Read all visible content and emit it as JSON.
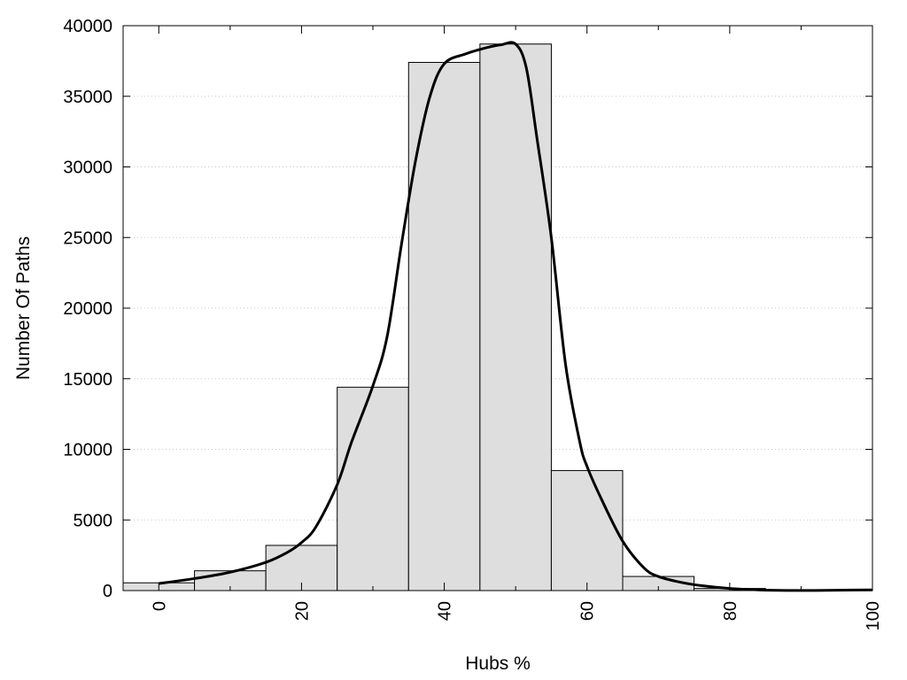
{
  "chart_data": {
    "type": "bar",
    "title": "",
    "xlabel": "Hubs %",
    "ylabel": "Number Of Paths",
    "xlim": [
      -5,
      100
    ],
    "ylim": [
      0,
      40000
    ],
    "grid": "horizontal-dotted",
    "legend": "none",
    "bar_color": "#dedede",
    "bar_edge_color": "#000000",
    "curve_color": "#000000",
    "xticks": [
      0,
      20,
      40,
      60,
      80,
      100
    ],
    "xtick_labels": [
      "0",
      "20",
      "40",
      "60",
      "80",
      "100"
    ],
    "yticks": [
      0,
      5000,
      10000,
      15000,
      20000,
      25000,
      30000,
      35000,
      40000
    ],
    "ytick_labels": [
      "0",
      "5000",
      "10000",
      "15000",
      "20000",
      "25000",
      "30000",
      "35000",
      "40000"
    ],
    "bin_width": 10,
    "bins": [
      {
        "center": 0,
        "value": 550
      },
      {
        "center": 10,
        "value": 1400
      },
      {
        "center": 20,
        "value": 3200
      },
      {
        "center": 30,
        "value": 14400
      },
      {
        "center": 40,
        "value": 37400
      },
      {
        "center": 50,
        "value": 38700
      },
      {
        "center": 60,
        "value": 8500
      },
      {
        "center": 70,
        "value": 1000
      },
      {
        "center": 80,
        "value": 150
      },
      {
        "center": 90,
        "value": 60
      },
      {
        "center": 100,
        "value": 30
      }
    ],
    "curve": {
      "x": [
        0,
        5,
        10,
        15,
        18,
        20,
        22,
        25,
        27,
        30,
        32,
        34,
        36,
        38,
        40,
        43,
        46,
        48,
        50,
        51.5,
        53,
        55,
        57,
        59,
        60,
        62,
        65,
        68,
        70,
        73,
        76,
        80,
        84,
        88,
        92,
        96,
        100
      ],
      "y": [
        500,
        850,
        1300,
        2000,
        2700,
        3400,
        4500,
        7500,
        10500,
        14500,
        18000,
        24500,
        30500,
        35000,
        37300,
        38000,
        38450,
        38650,
        38700,
        37000,
        32000,
        25000,
        16000,
        10500,
        8800,
        6500,
        3500,
        1600,
        1000,
        600,
        350,
        150,
        50,
        10,
        10,
        30,
        50
      ]
    }
  }
}
